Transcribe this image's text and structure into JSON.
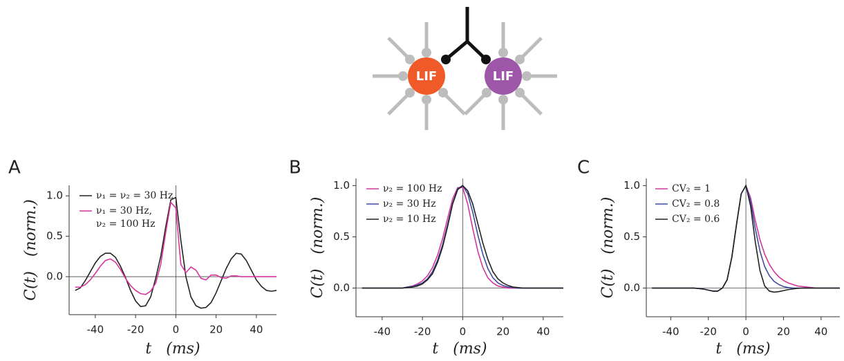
{
  "diagram": {
    "labels": [
      "LIF",
      "LIF"
    ]
  },
  "chart_data": [
    {
      "type": "line",
      "panel_label": "A",
      "xlabel": "t   (ms)",
      "ylabel": "C(t)   (norm.)",
      "x": [
        -50,
        -47.5,
        -45,
        -42.5,
        -40,
        -37.5,
        -35,
        -32.5,
        -30,
        -27.5,
        -25,
        -22.5,
        -20,
        -17.5,
        -15,
        -12.5,
        -10,
        -7.5,
        -5,
        -2.5,
        0,
        2.5,
        5,
        7.5,
        10,
        12.5,
        15,
        17.5,
        20,
        22.5,
        25,
        27.5,
        30,
        32.5,
        35,
        37.5,
        40,
        42.5,
        45,
        47.5,
        50
      ],
      "xlim": [
        -53,
        50
      ],
      "xticks": [
        -40,
        -20,
        0,
        20,
        40
      ],
      "ylim": [
        -0.47,
        1.13
      ],
      "yticks": [
        {
          "value": 0,
          "label": "0.0"
        },
        0.5,
        {
          "value": 1,
          "label": "1.0"
        }
      ],
      "zero_lines": true,
      "series": [
        {
          "name": "ν₁ = ν₂ = 30 Hz",
          "color": "#222222",
          "values": [
            -0.17,
            -0.14,
            -0.05,
            0.06,
            0.17,
            0.25,
            0.29,
            0.29,
            0.24,
            0.13,
            -0.01,
            -0.17,
            -0.3,
            -0.37,
            -0.36,
            -0.25,
            -0.02,
            0.25,
            0.62,
            0.95,
            0.98,
            0.45,
            0.0,
            -0.25,
            -0.36,
            -0.39,
            -0.38,
            -0.32,
            -0.2,
            -0.05,
            0.1,
            0.22,
            0.29,
            0.28,
            0.2,
            0.08,
            -0.04,
            -0.12,
            -0.17,
            -0.18,
            -0.17
          ]
        },
        {
          "name": "ν₁ = 30 Hz, ν₂ = 100 Hz",
          "color": "#d6359a",
          "values": [
            -0.13,
            -0.13,
            -0.1,
            -0.04,
            0.04,
            0.13,
            0.2,
            0.22,
            0.18,
            0.09,
            -0.02,
            -0.11,
            -0.17,
            -0.21,
            -0.22,
            -0.18,
            -0.08,
            0.15,
            0.55,
            0.92,
            0.85,
            0.15,
            0.05,
            0.12,
            0.08,
            -0.02,
            -0.04,
            0.02,
            0.02,
            -0.01,
            -0.02,
            0.01,
            0.01,
            0,
            0,
            0,
            0,
            0,
            0,
            0,
            0
          ]
        }
      ]
    },
    {
      "type": "line",
      "panel_label": "B",
      "xlabel": "t   (ms)",
      "ylabel": "C(t)   (norm.)",
      "x": [
        -50,
        -47.5,
        -45,
        -42.5,
        -40,
        -37.5,
        -35,
        -32.5,
        -30,
        -27.5,
        -25,
        -22.5,
        -20,
        -17.5,
        -15,
        -12.5,
        -10,
        -7.5,
        -5,
        -2.5,
        0,
        2.5,
        5,
        7.5,
        10,
        12.5,
        15,
        17.5,
        20,
        22.5,
        25,
        27.5,
        30,
        32.5,
        35,
        37.5,
        40,
        42.5,
        45,
        47.5,
        50
      ],
      "xlim": [
        -53,
        50
      ],
      "xticks": [
        -40,
        -20,
        0,
        20,
        40
      ],
      "ylim": [
        -0.28,
        1.07
      ],
      "yticks": [
        {
          "value": 0,
          "label": "0.0"
        },
        0.5,
        {
          "value": 1,
          "label": "1.0"
        }
      ],
      "zero_lines": true,
      "series": [
        {
          "name": "ν₂ = 100 Hz",
          "color": "#d6359a",
          "values": [
            0,
            0,
            0,
            0,
            0,
            0,
            0,
            0,
            0,
            0.01,
            0.02,
            0.04,
            0.07,
            0.12,
            0.2,
            0.32,
            0.48,
            0.68,
            0.87,
            0.98,
            0.98,
            0.82,
            0.58,
            0.36,
            0.2,
            0.1,
            0.05,
            0.02,
            0.01,
            0,
            0,
            0,
            0,
            0,
            0,
            0,
            0,
            0,
            0,
            0,
            0
          ]
        },
        {
          "name": "ν₂ = 30 Hz",
          "color": "#3f4aa0",
          "values": [
            0,
            0,
            0,
            0,
            0,
            0,
            0,
            0,
            0,
            0.01,
            0.015,
            0.03,
            0.05,
            0.09,
            0.16,
            0.27,
            0.42,
            0.62,
            0.83,
            0.97,
            1.0,
            0.92,
            0.74,
            0.52,
            0.33,
            0.19,
            0.1,
            0.05,
            0.025,
            0.01,
            0.005,
            0,
            0,
            0,
            0,
            0,
            0,
            0,
            0,
            0,
            0
          ]
        },
        {
          "name": "ν₂ = 10 Hz",
          "color": "#222222",
          "values": [
            0,
            0,
            0,
            0,
            0,
            0,
            0,
            0,
            0,
            0.005,
            0.01,
            0.02,
            0.04,
            0.08,
            0.14,
            0.25,
            0.4,
            0.6,
            0.82,
            0.96,
            1.0,
            0.95,
            0.82,
            0.63,
            0.44,
            0.28,
            0.16,
            0.09,
            0.05,
            0.025,
            0.01,
            0.005,
            0,
            0,
            0,
            0,
            0,
            0,
            0,
            0,
            0
          ]
        }
      ]
    },
    {
      "type": "line",
      "panel_label": "C",
      "xlabel": "t   (ms)",
      "ylabel": "C(t)   (norm.)",
      "x": [
        -50,
        -47.5,
        -45,
        -42.5,
        -40,
        -37.5,
        -35,
        -32.5,
        -30,
        -27.5,
        -25,
        -22.5,
        -20,
        -17.5,
        -15,
        -12.5,
        -10,
        -7.5,
        -5,
        -2.5,
        0,
        2.5,
        5,
        7.5,
        10,
        12.5,
        15,
        17.5,
        20,
        22.5,
        25,
        27.5,
        30,
        32.5,
        35,
        37.5,
        40,
        42.5,
        45,
        47.5,
        50
      ],
      "xlim": [
        -53,
        50
      ],
      "xticks": [
        -40,
        -20,
        0,
        20,
        40
      ],
      "ylim": [
        -0.28,
        1.07
      ],
      "yticks": [
        {
          "value": 0,
          "label": "0.0"
        },
        0.5,
        {
          "value": 1,
          "label": "1.0"
        }
      ],
      "zero_lines": true,
      "series": [
        {
          "name": "CV₂ = 1",
          "color": "#d6359a",
          "values": [
            0,
            0,
            0,
            0,
            0,
            0,
            0,
            0,
            0,
            0,
            -0.005,
            -0.01,
            -0.02,
            -0.03,
            -0.03,
            0.0,
            0.08,
            0.3,
            0.62,
            0.92,
            1.0,
            0.88,
            0.66,
            0.47,
            0.33,
            0.23,
            0.16,
            0.11,
            0.075,
            0.05,
            0.035,
            0.02,
            0.015,
            0.01,
            0.005,
            0,
            0,
            0,
            0,
            0,
            0
          ]
        },
        {
          "name": "CV₂ = 0.8",
          "color": "#3f4aa0",
          "values": [
            0,
            0,
            0,
            0,
            0,
            0,
            0,
            0,
            0,
            0,
            -0.005,
            -0.01,
            -0.02,
            -0.03,
            -0.03,
            0.0,
            0.08,
            0.3,
            0.62,
            0.92,
            1.0,
            0.85,
            0.58,
            0.36,
            0.21,
            0.12,
            0.065,
            0.035,
            0.015,
            0.005,
            0,
            0,
            0,
            0,
            0,
            0,
            0,
            0,
            0,
            0,
            0
          ]
        },
        {
          "name": "CV₂ = 0.6",
          "color": "#222222",
          "values": [
            0,
            0,
            0,
            0,
            0,
            0,
            0,
            0,
            0,
            0,
            -0.005,
            -0.01,
            -0.02,
            -0.03,
            -0.03,
            0.0,
            0.08,
            0.3,
            0.62,
            0.92,
            1.0,
            0.8,
            0.45,
            0.17,
            0.02,
            -0.03,
            -0.04,
            -0.035,
            -0.025,
            -0.015,
            -0.008,
            -0.003,
            0,
            0,
            0,
            0,
            0,
            0,
            0,
            0,
            0
          ]
        }
      ]
    }
  ]
}
